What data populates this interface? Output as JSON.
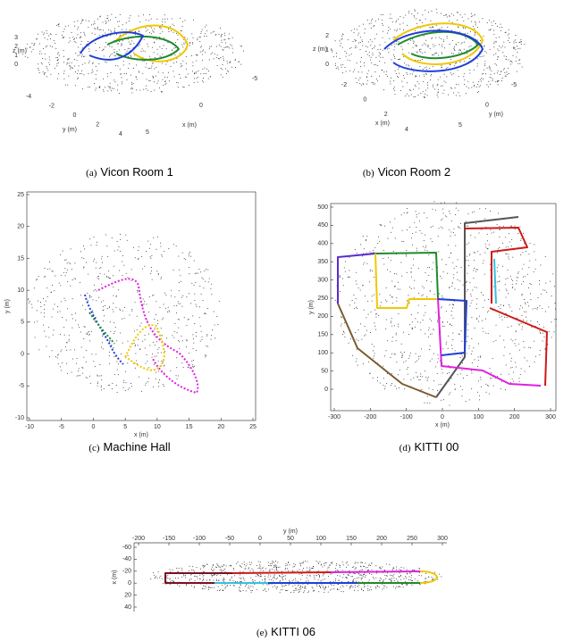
{
  "panels": [
    {
      "label": "(a)",
      "caption": "Vicon Room 1",
      "z_label": "z (m)",
      "z_ticks": [
        3,
        2,
        1,
        0
      ],
      "y_label": "y (m)",
      "y_ticks": [
        -4,
        -2,
        0,
        2,
        4
      ],
      "x_label": "x (m)",
      "x_ticks": [
        -5,
        0,
        5
      ]
    },
    {
      "label": "(b)",
      "caption": "Vicon Room 2",
      "z_label": "z (m)",
      "z_ticks": [
        2,
        1,
        0
      ],
      "x_label": "x (m)",
      "x_ticks": [
        -2,
        0,
        2,
        4
      ],
      "y_label": "y (m)",
      "y_ticks": [
        -5,
        0,
        5
      ]
    },
    {
      "label": "(c)",
      "caption": "Machine Hall",
      "x_label": "x (m)",
      "x_ticks": [
        -10,
        -5,
        0,
        5,
        10,
        15,
        20,
        25
      ],
      "y_label": "y (m)",
      "y_ticks": [
        -10,
        -5,
        0,
        5,
        10,
        15,
        20,
        25
      ]
    },
    {
      "label": "(d)",
      "caption": "KITTI 00",
      "x_label": "x (m)",
      "x_ticks": [
        -300,
        -200,
        -100,
        0,
        100,
        200,
        300
      ],
      "y_label": "y (m)",
      "y_ticks": [
        0,
        50,
        100,
        150,
        200,
        250,
        300,
        350,
        400,
        450,
        500
      ]
    },
    {
      "label": "(e)",
      "caption": "KITTI 06",
      "x_label": "y (m)",
      "x_ticks": [
        -200,
        -150,
        -100,
        -50,
        0,
        50,
        100,
        150,
        200,
        250,
        300
      ],
      "y_label": "x (m)",
      "y_ticks": [
        -60,
        -40,
        -20,
        0,
        20,
        40
      ]
    }
  ]
}
